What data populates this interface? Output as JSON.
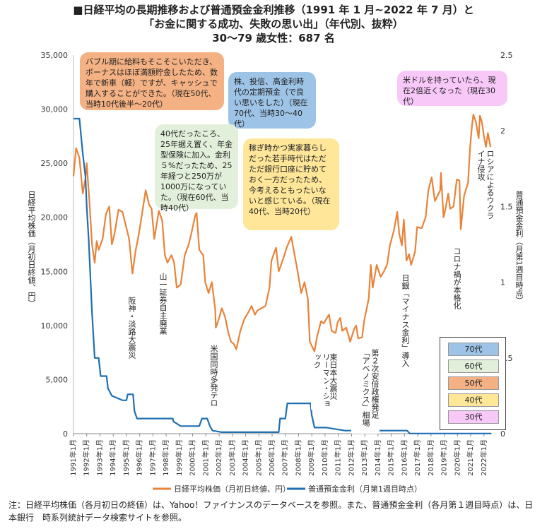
{
  "title": {
    "line1": "■日経平均の長期推移および普通預金金利推移（1991 年 1 月~2022 年 7 月）と",
    "line2": "「お金に関する成功、失敗の思い出」（年代別、抜粋）",
    "line3": "30～79 歳女性：687 名"
  },
  "footnote": "注：日経平均株価（各月初日の終値）は、Yahoo！ファイナンスのデータベースを参照。また、普通預金金利（各月第１週目時点）は、日本銀行　時系列統計データ検索サイトを参照。",
  "colors": {
    "nikkei": "#E8833A",
    "rate": "#1F6FB2",
    "age70": "#9DC3E6",
    "age60": "#E2EFDA",
    "age50": "#F4B183",
    "age40": "#FFE699",
    "age30": "#F8C8F8"
  },
  "chart_data": {
    "type": "line",
    "title": "日経平均の長期推移および普通預金金利推移（1991 年 1 月~2022 年 7 月）",
    "y_left_label": "日経平均株価（月初日終値、円）",
    "y_right_label": "普通預金金利（月第1週目時点）",
    "y_left_ticks": [
      "0",
      "5,000",
      "10,000",
      "15,000",
      "20,000",
      "25,000",
      "30,000",
      "35,000"
    ],
    "y_right_ticks": [
      "0",
      "0.5",
      "1",
      "1.5",
      "2",
      "2.5"
    ],
    "ylim_left": [
      0,
      35000
    ],
    "ylim_right": [
      0,
      2.5
    ],
    "x_ticks": [
      "1991年1月",
      "1992年1月",
      "1993年1月",
      "1994年1月",
      "1995年1月",
      "1996年1月",
      "1997年1月",
      "1998年1月",
      "1999年1月",
      "2000年1月",
      "2001年1月",
      "2002年1月",
      "2003年1月",
      "2004年1月",
      "2005年1月",
      "2006年1月",
      "2007年1月",
      "2008年1月",
      "2009年1月",
      "2010年1月",
      "2011年1月",
      "2012年1月",
      "2013年1月",
      "2014年1月",
      "2015年1月",
      "2016年1月",
      "2017年1月",
      "2018年1月",
      "2019年1月",
      "2020年1月",
      "2021年1月",
      "2022年1月"
    ],
    "series": [
      {
        "name": "日経平均株価（月初日終値、円）",
        "axis": "left",
        "points": [
          [
            1991.0,
            23800
          ],
          [
            1991.2,
            26400
          ],
          [
            1991.45,
            25500
          ],
          [
            1991.7,
            22200
          ],
          [
            1991.9,
            23600
          ],
          [
            1992.0,
            25000
          ],
          [
            1992.2,
            21500
          ],
          [
            1992.4,
            17500
          ],
          [
            1992.6,
            15800
          ],
          [
            1992.75,
            17800
          ],
          [
            1992.9,
            17000
          ],
          [
            1993.2,
            18000
          ],
          [
            1993.45,
            20300
          ],
          [
            1993.7,
            21000
          ],
          [
            1993.9,
            17500
          ],
          [
            1994.1,
            18500
          ],
          [
            1994.4,
            20700
          ],
          [
            1994.7,
            20500
          ],
          [
            1994.9,
            19500
          ],
          [
            1995.2,
            18000
          ],
          [
            1995.45,
            14800
          ],
          [
            1995.7,
            17000
          ],
          [
            1995.9,
            18200
          ],
          [
            1996.2,
            20500
          ],
          [
            1996.45,
            22500
          ],
          [
            1996.7,
            21200
          ],
          [
            1996.9,
            20800
          ],
          [
            1997.1,
            18000
          ],
          [
            1997.45,
            20600
          ],
          [
            1997.7,
            19700
          ],
          [
            1997.9,
            16500
          ],
          [
            1998.1,
            15800
          ],
          [
            1998.4,
            16500
          ],
          [
            1998.6,
            15800
          ],
          [
            1998.8,
            13500
          ],
          [
            1999.1,
            13800
          ],
          [
            1999.4,
            16500
          ],
          [
            1999.7,
            17500
          ],
          [
            1999.9,
            18500
          ],
          [
            2000.2,
            20200
          ],
          [
            2000.3,
            20400
          ],
          [
            2000.5,
            17000
          ],
          [
            2000.8,
            16500
          ],
          [
            2000.95,
            14000
          ],
          [
            2001.2,
            13000
          ],
          [
            2001.45,
            14000
          ],
          [
            2001.7,
            11500
          ],
          [
            2001.75,
            9800
          ],
          [
            2001.95,
            10500
          ],
          [
            2002.2,
            11600
          ],
          [
            2002.45,
            10800
          ],
          [
            2002.7,
            9300
          ],
          [
            2002.9,
            8500
          ],
          [
            2003.1,
            8300
          ],
          [
            2003.3,
            7800
          ],
          [
            2003.6,
            9500
          ],
          [
            2003.9,
            10600
          ],
          [
            2004.2,
            11200
          ],
          [
            2004.45,
            11800
          ],
          [
            2004.7,
            11000
          ],
          [
            2004.9,
            11400
          ],
          [
            2005.2,
            11600
          ],
          [
            2005.5,
            11800
          ],
          [
            2005.8,
            13500
          ],
          [
            2005.95,
            16000
          ],
          [
            2006.3,
            17200
          ],
          [
            2006.5,
            15000
          ],
          [
            2006.9,
            16400
          ],
          [
            2007.1,
            17200
          ],
          [
            2007.45,
            18200
          ],
          [
            2007.7,
            16500
          ],
          [
            2007.9,
            15200
          ],
          [
            2008.2,
            13000
          ],
          [
            2008.45,
            14000
          ],
          [
            2008.7,
            12500
          ],
          [
            2008.85,
            8500
          ],
          [
            2009.2,
            7600
          ],
          [
            2009.4,
            9000
          ],
          [
            2009.7,
            10400
          ],
          [
            2009.9,
            10200
          ],
          [
            2010.3,
            11000
          ],
          [
            2010.5,
            9500
          ],
          [
            2010.8,
            9300
          ],
          [
            2010.95,
            10300
          ],
          [
            2011.15,
            10700
          ],
          [
            2011.3,
            9500
          ],
          [
            2011.6,
            9800
          ],
          [
            2011.9,
            8500
          ],
          [
            2012.2,
            9700
          ],
          [
            2012.35,
            10000
          ],
          [
            2012.5,
            8800
          ],
          [
            2012.8,
            8900
          ],
          [
            2012.95,
            10400
          ],
          [
            2013.3,
            12500
          ],
          [
            2013.45,
            15600
          ],
          [
            2013.6,
            13500
          ],
          [
            2013.9,
            15600
          ],
          [
            2014.2,
            14500
          ],
          [
            2014.45,
            15000
          ],
          [
            2014.7,
            15700
          ],
          [
            2014.9,
            17400
          ],
          [
            2015.2,
            18800
          ],
          [
            2015.45,
            20500
          ],
          [
            2015.6,
            18500
          ],
          [
            2015.8,
            17400
          ],
          [
            2015.95,
            19800
          ],
          [
            2016.15,
            16000
          ],
          [
            2016.35,
            16600
          ],
          [
            2016.5,
            15600
          ],
          [
            2016.8,
            16800
          ],
          [
            2016.95,
            19100
          ],
          [
            2017.3,
            19000
          ],
          [
            2017.6,
            20000
          ],
          [
            2017.8,
            22500
          ],
          [
            2018.05,
            23700
          ],
          [
            2018.3,
            21500
          ],
          [
            2018.7,
            22500
          ],
          [
            2018.75,
            24100
          ],
          [
            2018.95,
            20000
          ],
          [
            2019.1,
            20800
          ],
          [
            2019.3,
            22200
          ],
          [
            2019.45,
            20800
          ],
          [
            2019.7,
            21000
          ],
          [
            2019.95,
            23500
          ],
          [
            2020.15,
            23400
          ],
          [
            2020.25,
            18900
          ],
          [
            2020.5,
            22000
          ],
          [
            2020.8,
            23200
          ],
          [
            2020.95,
            26400
          ],
          [
            2021.1,
            28500
          ],
          [
            2021.2,
            29500
          ],
          [
            2021.4,
            28800
          ],
          [
            2021.6,
            27300
          ],
          [
            2021.7,
            29400
          ],
          [
            2021.85,
            28800
          ],
          [
            2022.0,
            27500
          ],
          [
            2022.15,
            26500
          ],
          [
            2022.3,
            27800
          ],
          [
            2022.5,
            26500
          ]
        ]
      },
      {
        "name": "普通預金金利（月第1週目時点）",
        "axis": "right",
        "points": [
          [
            1991.0,
            2.08
          ],
          [
            1991.45,
            2.08
          ],
          [
            1991.7,
            1.85
          ],
          [
            1991.9,
            1.7
          ],
          [
            1992.0,
            1.5
          ],
          [
            1992.15,
            1.28
          ],
          [
            1992.4,
            0.8
          ],
          [
            1992.6,
            0.5
          ],
          [
            1992.9,
            0.5
          ],
          [
            1993.05,
            0.38
          ],
          [
            1993.5,
            0.38
          ],
          [
            1993.6,
            0.3
          ],
          [
            1993.9,
            0.25
          ],
          [
            1994.7,
            0.22
          ],
          [
            1995.0,
            0.22
          ],
          [
            1995.1,
            0.26
          ],
          [
            1995.5,
            0.26
          ],
          [
            1995.6,
            0.15
          ],
          [
            1995.8,
            0.1
          ],
          [
            1998.5,
            0.1
          ],
          [
            1998.55,
            0.08
          ],
          [
            1999.1,
            0.05
          ],
          [
            2000.0,
            0.05
          ],
          [
            2000.5,
            0.05
          ],
          [
            2000.7,
            0.1
          ],
          [
            2001.1,
            0.1
          ],
          [
            2001.3,
            0.05
          ],
          [
            2001.5,
            0.02
          ],
          [
            2002.2,
            0.01
          ],
          [
            2006.0,
            0.01
          ],
          [
            2006.5,
            0.01
          ],
          [
            2006.6,
            0.1
          ],
          [
            2007.0,
            0.1
          ],
          [
            2007.15,
            0.2
          ],
          [
            2008.0,
            0.2
          ],
          [
            2008.6,
            0.2
          ],
          [
            2008.9,
            0.2
          ],
          [
            2009.0,
            0.12
          ],
          [
            2009.2,
            0.04
          ],
          [
            2010.1,
            0.04
          ],
          [
            2011.5,
            0.02
          ],
          [
            2016.2,
            0.02
          ],
          [
            2016.4,
            0.001
          ],
          [
            2022.55,
            0.001
          ]
        ]
      }
    ],
    "legend": [
      "日経平均株価（月初日終値、円）",
      "普通預金金利（月第1週目時点）"
    ]
  },
  "events": [
    {
      "label": "阪神・淡路大震災"
    },
    {
      "label": "山一証券自主廃業"
    },
    {
      "label": "米国同時多発テロ"
    },
    {
      "label": "リーマン・ショック"
    },
    {
      "label": "東日本大震災"
    },
    {
      "label": "第２次安倍政権発足「アベノミクス」相場"
    },
    {
      "label": "日銀「マイナス金利」導入"
    },
    {
      "label": "コロナ禍が本格化"
    },
    {
      "label": "ロシアによるウクライナ侵攻"
    }
  ],
  "bubbles": [
    {
      "age": "50代",
      "text": "バブル期に給料もそこそこいただき、ボーナスはほぼ満額貯金したため、数年で新車（軽）ですが、キャッシュで購入することができた。（現在50代、当時10代後半～20代）"
    },
    {
      "age": "70代",
      "text": "株、投信、高金利時代の定期預金（で良い思いをした）（現在70代、当時30～40代）"
    },
    {
      "age": "60代",
      "text": "40代だったころ、25年据え置く、年金型保険に加入。金利５%だったため、25年経つと250万が1000万になっていた。（現在60代、当時40代）"
    },
    {
      "age": "40代",
      "text": "稼ぎ時かつ実家暮らしだった若手時代はただただ銀行口座に貯めておく一方だったため、今考えるともったいないと感じている。（現在40代、当時20代）"
    },
    {
      "age": "30代",
      "text": "米ドルを持っていたら、現在2倍近くなった（現在30代）"
    }
  ],
  "age_legend": [
    "70代",
    "60代",
    "50代",
    "40代",
    "30代"
  ]
}
